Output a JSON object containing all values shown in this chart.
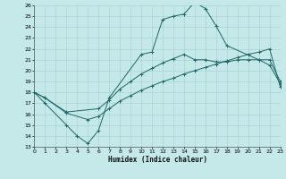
{
  "xlabel": "Humidex (Indice chaleur)",
  "bg_color": "#c5e8e8",
  "grid_color": "#aad4d4",
  "line_color": "#1a6868",
  "xlim": [
    0,
    23
  ],
  "ylim": [
    13,
    26
  ],
  "xticks": [
    0,
    1,
    2,
    3,
    4,
    5,
    6,
    7,
    8,
    9,
    10,
    11,
    12,
    13,
    14,
    15,
    16,
    17,
    18,
    19,
    20,
    21,
    22,
    23
  ],
  "yticks": [
    13,
    14,
    15,
    16,
    17,
    18,
    19,
    20,
    21,
    22,
    23,
    24,
    25,
    26
  ],
  "curve1_x": [
    0,
    1,
    3,
    4,
    5,
    6,
    7,
    10,
    11,
    12,
    13,
    14,
    15,
    16,
    17,
    18,
    21,
    22,
    23
  ],
  "curve1_y": [
    18,
    17,
    15,
    14,
    13.3,
    14.5,
    17.5,
    21.5,
    21.7,
    24.7,
    25.0,
    25.2,
    26.3,
    25.7,
    24.1,
    22.3,
    21.0,
    21.0,
    19.0
  ],
  "curve2_x": [
    0,
    1,
    3,
    6,
    7,
    8,
    9,
    10,
    11,
    12,
    13,
    14,
    15,
    16,
    17,
    18,
    19,
    20,
    21,
    22,
    23
  ],
  "curve2_y": [
    18,
    17.5,
    16.2,
    16.5,
    17.3,
    18.3,
    19.0,
    19.7,
    20.2,
    20.7,
    21.1,
    21.5,
    21.0,
    21.0,
    20.8,
    20.8,
    21.0,
    21.0,
    21.0,
    20.5,
    18.8
  ],
  "curve3_x": [
    0,
    1,
    3,
    5,
    6,
    7,
    8,
    9,
    10,
    11,
    12,
    13,
    14,
    15,
    16,
    17,
    18,
    19,
    20,
    21,
    22,
    23
  ],
  "curve3_y": [
    18,
    17.5,
    16.1,
    15.5,
    15.8,
    16.5,
    17.2,
    17.7,
    18.2,
    18.6,
    19.0,
    19.3,
    19.7,
    20.0,
    20.3,
    20.6,
    20.9,
    21.2,
    21.5,
    21.7,
    22.0,
    18.5
  ]
}
